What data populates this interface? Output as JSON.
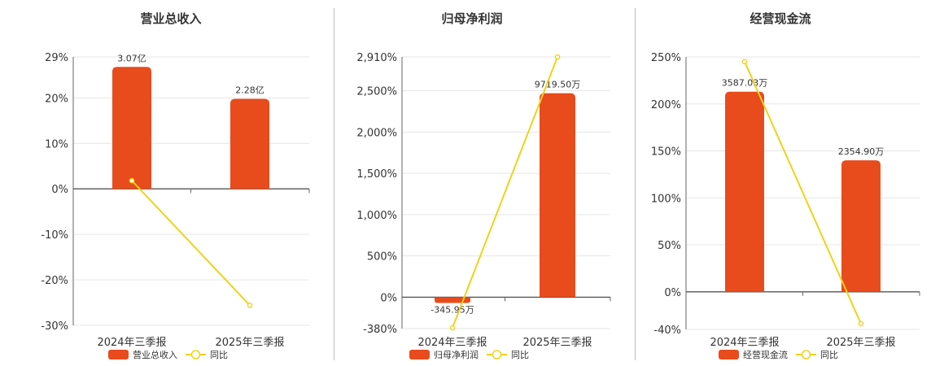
{
  "colors": {
    "bar": "#e84b1c",
    "line": "#f0d21a",
    "marker_fill": "#ffffff"
  },
  "chart_data": [
    {
      "type": "bar",
      "title": "营业总收入",
      "categories": [
        "2024年三季报",
        "2025年三季报"
      ],
      "yticks": [
        "29%",
        "20%",
        "10%",
        "0%",
        "-10%",
        "-20%",
        "-30%"
      ],
      "ylim": [
        -30,
        29
      ],
      "series": [
        {
          "name": "营业总收入",
          "type": "bar",
          "values": [
            26.8,
            19.8
          ],
          "labels": [
            "3.07亿",
            "2.28亿"
          ]
        },
        {
          "name": "同比",
          "type": "line",
          "values": [
            1.8,
            -25.6
          ]
        }
      ],
      "legend": "bottom"
    },
    {
      "type": "bar",
      "title": "归母净利润",
      "categories": [
        "2024年三季报",
        "2025年三季报"
      ],
      "yticks": [
        "2,910%",
        "2,500%",
        "2,000%",
        "1,500%",
        "1,000%",
        "500%",
        "0%",
        "-380%"
      ],
      "ylim": [
        -380,
        2910
      ],
      "series": [
        {
          "name": "归母净利润",
          "type": "bar",
          "values": [
            -70,
            2470
          ],
          "labels": [
            "-345.95万",
            "9719.50万"
          ]
        },
        {
          "name": "同比",
          "type": "line",
          "values": [
            -370,
            2910
          ]
        }
      ],
      "legend": "bottom"
    },
    {
      "type": "bar",
      "title": "经营现金流",
      "categories": [
        "2024年三季报",
        "2025年三季报"
      ],
      "yticks": [
        "250%",
        "200%",
        "150%",
        "100%",
        "50%",
        "0%",
        "-40%"
      ],
      "ylim": [
        -40,
        250
      ],
      "series": [
        {
          "name": "经营现金流",
          "type": "bar",
          "values": [
            213,
            140
          ],
          "labels": [
            "3587.03万",
            "2354.90万"
          ]
        },
        {
          "name": "同比",
          "type": "line",
          "values": [
            245,
            -34
          ]
        }
      ],
      "legend": "bottom"
    }
  ]
}
